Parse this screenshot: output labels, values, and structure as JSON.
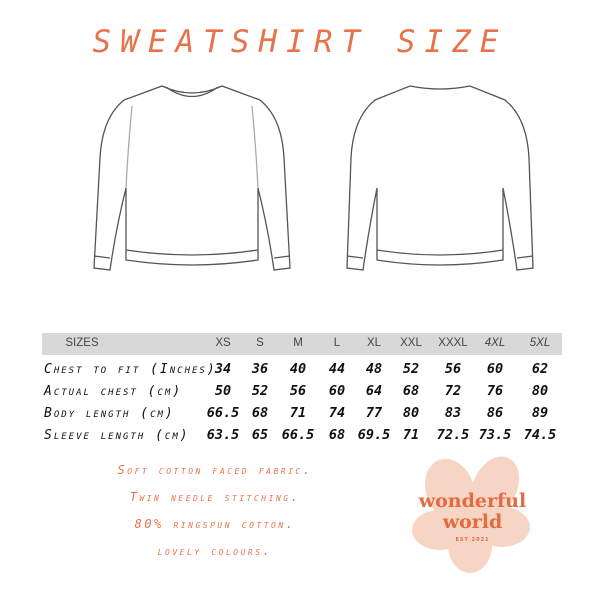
{
  "title": "SWEATSHIRT SIZE",
  "table": {
    "headers": [
      "SIZES",
      "XS",
      "S",
      "M",
      "L",
      "XL",
      "XXL",
      "XXXL",
      "4XL",
      "5XL"
    ],
    "rows": [
      {
        "label": "Chest to fit (Inches)",
        "values": [
          "34",
          "36",
          "40",
          "44",
          "48",
          "52",
          "56",
          "60",
          "62"
        ]
      },
      {
        "label": "Actual chest (cm)",
        "values": [
          "50",
          "52",
          "56",
          "60",
          "64",
          "68",
          "72",
          "76",
          "80"
        ]
      },
      {
        "label": "Body length (cm)",
        "values": [
          "66.5",
          "68",
          "71",
          "74",
          "77",
          "80",
          "83",
          "86",
          "89"
        ]
      },
      {
        "label": "Sleeve length (cm)",
        "values": [
          "63.5",
          "65",
          "66.5",
          "68",
          "69.5",
          "71",
          "72.5",
          "73.5",
          "74.5"
        ]
      }
    ]
  },
  "notes": [
    "Soft cotton faced fabric.",
    "Twin needle stitching.",
    "80% ringspun cotton.",
    "lovely colours."
  ],
  "logo": {
    "line1": "wonderful",
    "line2": "world",
    "tagline": "EST 2021"
  },
  "colors": {
    "accent": "#e8734a",
    "header_band": "#d8d8d8",
    "logo_flower": "#f6d5c5"
  }
}
